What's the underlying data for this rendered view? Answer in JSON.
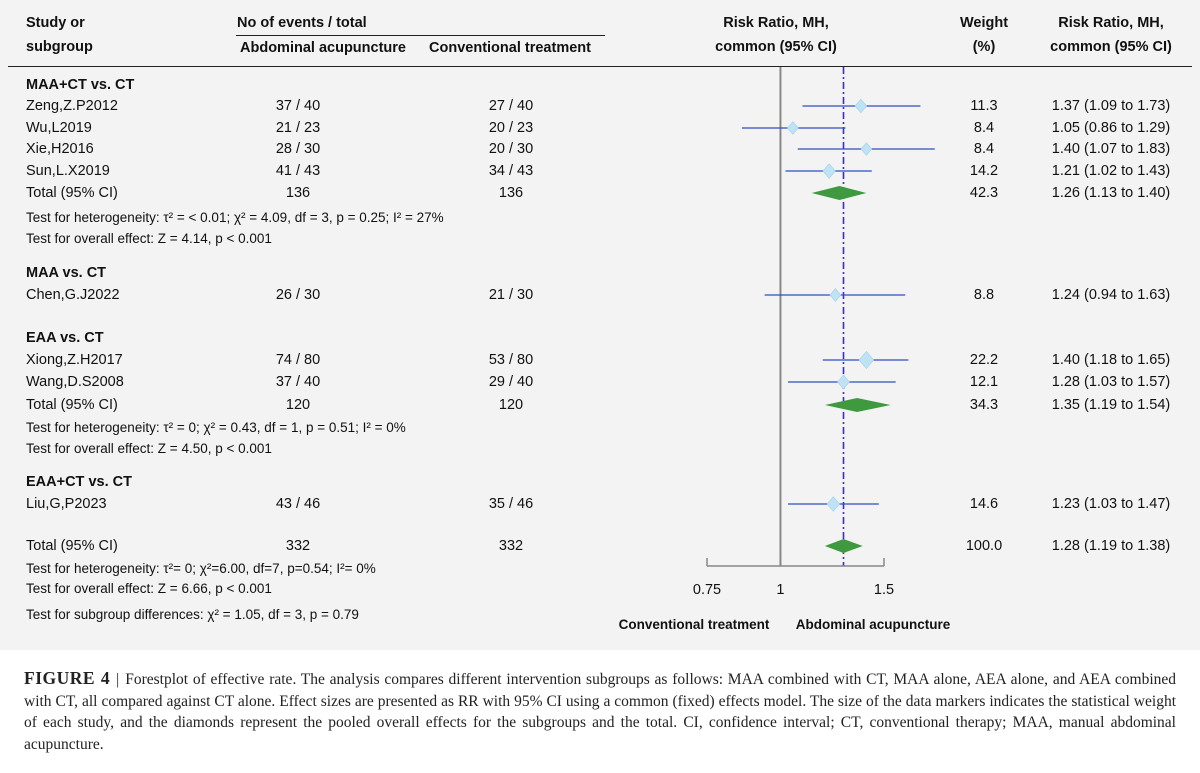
{
  "header": {
    "study_line1": "Study or",
    "study_line2": "subgroup",
    "events_title": "No of events / total",
    "events_col1": "Abdominal acupuncture",
    "events_col2": "Conventional treatment",
    "rr_line1": "Risk Ratio, MH,",
    "rr_line2": "common (95% CI)",
    "weight_line1": "Weight",
    "weight_line2": "(%)",
    "rrv_line1": "Risk Ratio, MH,",
    "rrv_line2": "common (95% CI)"
  },
  "groups": [
    {
      "title": "MAA+CT vs. CT",
      "studies": [
        {
          "name": "Zeng,Z.P2012",
          "ev1": "37 / 40",
          "ev2": "27 / 40",
          "weight": "11.3",
          "ci_text": "1.37 (1.09 to 1.73)"
        },
        {
          "name": "Wu,L2019",
          "ev1": "21 / 23",
          "ev2": "20 / 23",
          "weight": "8.4",
          "ci_text": "1.05 (0.86 to 1.29)"
        },
        {
          "name": "Xie,H2016",
          "ev1": "28 / 30",
          "ev2": "20 / 30",
          "weight": "8.4",
          "ci_text": "1.40 (1.07 to 1.83)"
        },
        {
          "name": "Sun,L.X2019",
          "ev1": "41 / 43",
          "ev2": "34 / 43",
          "weight": "14.2",
          "ci_text": "1.21 (1.02 to 1.43)"
        }
      ],
      "total": {
        "label": "Total (95% CI)",
        "n1": "136",
        "n2": "136",
        "weight": "42.3",
        "ci_text": "1.26 (1.13 to 1.40)"
      },
      "heterogeneity": "Test for heterogeneity: τ² = < 0.01; χ² = 4.09, df = 3, p = 0.25; I² = 27%",
      "overall": "Test for overall effect: Z = 4.14, p < 0.001"
    },
    {
      "title": "MAA vs. CT",
      "studies": [
        {
          "name": "Chen,G.J2022",
          "ev1": "26 / 30",
          "ev2": "21 / 30",
          "weight": "8.8",
          "ci_text": "1.24 (0.94 to 1.63)"
        }
      ]
    },
    {
      "title": "EAA vs. CT",
      "studies": [
        {
          "name": "Xiong,Z.H2017",
          "ev1": "74 / 80",
          "ev2": "53 / 80",
          "weight": "22.2",
          "ci_text": "1.40 (1.18 to 1.65)"
        },
        {
          "name": "Wang,D.S2008",
          "ev1": "37 / 40",
          "ev2": "29 / 40",
          "weight": "12.1",
          "ci_text": "1.28 (1.03 to 1.57)"
        }
      ],
      "total": {
        "label": "Total (95% CI)",
        "n1": "120",
        "n2": "120",
        "weight": "34.3",
        "ci_text": "1.35 (1.19 to 1.54)"
      },
      "heterogeneity": "Test for heterogeneity: τ² = 0; χ² = 0.43, df = 1, p = 0.51; I² = 0%",
      "overall": "Test for overall effect: Z = 4.50, p < 0.001"
    },
    {
      "title": "EAA+CT vs. CT",
      "studies": [
        {
          "name": "Liu,G,P2023",
          "ev1": "43 / 46",
          "ev2": "35 / 46",
          "weight": "14.6",
          "ci_text": "1.23 (1.03 to 1.47)"
        }
      ]
    }
  ],
  "overall_total": {
    "label": "Total (95% CI)",
    "n1": "332",
    "n2": "332",
    "weight": "100.0",
    "ci_text": "1.28 (1.19 to 1.38)"
  },
  "overall_heterogeneity": "Test for heterogeneity: τ²= 0; χ²=6.00, df=7, p=0.54; I²= 0%",
  "overall_effect": "Test for overall effect: Z = 6.66, p < 0.001",
  "subgroup_test": "Test for subgroup differences: χ² = 1.05, df = 3, p = 0.79",
  "axis": {
    "left_label": "Conventional treatment",
    "right_label": "Abdominal acupuncture"
  },
  "caption": {
    "label": "FIGURE 4",
    "text": "Forestplot of effective rate. The analysis compares different intervention subgroups as follows: MAA combined with CT, MAA alone, AEA alone, and AEA combined with CT, all compared against CT alone. Effect sizes are presented as RR with 95% CI using a common (fixed) effects model. The size of the data markers indicates the statistical weight of each study, and the diamonds represent the pooled overall effects for the subgroups and the total. CI, confidence interval; CT, conventional therapy; MAA, manual abdominal acupuncture."
  },
  "colors": {
    "background": "#f3f3f3",
    "ci_line": "#2f4fbf",
    "study_marker": "#bfe3f5",
    "pooled_diamond": "#3f9a3f",
    "pooled_line": "#3a2fbf",
    "null_line": "#888888"
  },
  "chart_data": {
    "type": "forest",
    "xlim": [
      0.75,
      1.5
    ],
    "xticks": [
      0.75,
      1,
      1.5
    ],
    "null_value": 1,
    "pooled_value": 1.28,
    "studies": [
      {
        "name": "Zeng,Z.P2012",
        "rr": 1.37,
        "lo": 1.09,
        "hi": 1.73,
        "weight": 11.3
      },
      {
        "name": "Wu,L2019",
        "rr": 1.05,
        "lo": 0.86,
        "hi": 1.29,
        "weight": 8.4
      },
      {
        "name": "Xie,H2016",
        "rr": 1.4,
        "lo": 1.07,
        "hi": 1.83,
        "weight": 8.4
      },
      {
        "name": "Sun,L.X2019",
        "rr": 1.21,
        "lo": 1.02,
        "hi": 1.43,
        "weight": 14.2
      },
      {
        "name": "Chen,G.J2022",
        "rr": 1.24,
        "lo": 0.94,
        "hi": 1.63,
        "weight": 8.8
      },
      {
        "name": "Xiong,Z.H2017",
        "rr": 1.4,
        "lo": 1.18,
        "hi": 1.65,
        "weight": 22.2
      },
      {
        "name": "Wang,D.S2008",
        "rr": 1.28,
        "lo": 1.03,
        "hi": 1.57,
        "weight": 12.1
      },
      {
        "name": "Liu,G,P2023",
        "rr": 1.23,
        "lo": 1.03,
        "hi": 1.47,
        "weight": 14.6
      }
    ],
    "pooled": [
      {
        "label": "MAA+CT vs. CT",
        "rr": 1.26,
        "lo": 1.13,
        "hi": 1.4
      },
      {
        "label": "EAA vs. CT",
        "rr": 1.35,
        "lo": 1.19,
        "hi": 1.54
      },
      {
        "label": "Total",
        "rr": 1.28,
        "lo": 1.19,
        "hi": 1.38
      }
    ]
  }
}
